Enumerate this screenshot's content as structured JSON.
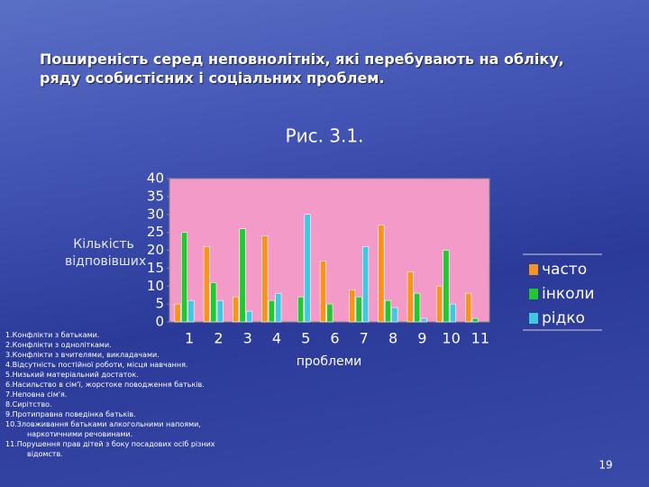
{
  "chart_data": {
    "type": "bar",
    "title": "Поширеність серед неповнолітніх, які перебувають на обліку, ряду особистісних і соціальних проблем.",
    "subtitle": "Рис. 3.1.",
    "ylabel": "Кількість відповівших",
    "xlabel": "проблеми",
    "categories": [
      "1",
      "2",
      "3",
      "4",
      "5",
      "6",
      "7",
      "8",
      "9",
      "10",
      "11"
    ],
    "series": [
      {
        "name": "часто",
        "color": "#f7941d",
        "values": [
          5,
          21,
          7,
          24,
          0,
          17,
          9,
          27,
          14,
          10,
          8
        ]
      },
      {
        "name": "інколи",
        "color": "#22c832",
        "values": [
          25,
          11,
          26,
          6,
          7,
          5,
          7,
          6,
          8,
          20,
          1
        ]
      },
      {
        "name": "рідко",
        "color": "#3fc8e0",
        "values": [
          6,
          6,
          3,
          8,
          30,
          0,
          21,
          4,
          1,
          5,
          0
        ]
      }
    ],
    "ylim": [
      0,
      40
    ],
    "yticks": [
      0,
      5,
      10,
      15,
      20,
      25,
      30,
      35,
      40
    ],
    "legend": "right"
  },
  "notes": [
    "1.Конфлікти з батьками.",
    "2.Конфлікти з однолітками.",
    "3.Конфлікти з вчителями, викладачами.",
    "4.Відсутність постійної роботи, місця навчання.",
    "5.Низький матеріальний достаток.",
    "6.Насильство в сім'ї, жорстоке поводження батьків.",
    "7.Неповна сім'я.",
    "8.Сирітство.",
    "9.Протиправна поведінка батьків.",
    "10.Зловживання батьками алкогольними напоями, наркотичними речовинами.",
    "11.Порушення прав дітей з боку посадових осіб різних відомств."
  ],
  "page_number": "19"
}
